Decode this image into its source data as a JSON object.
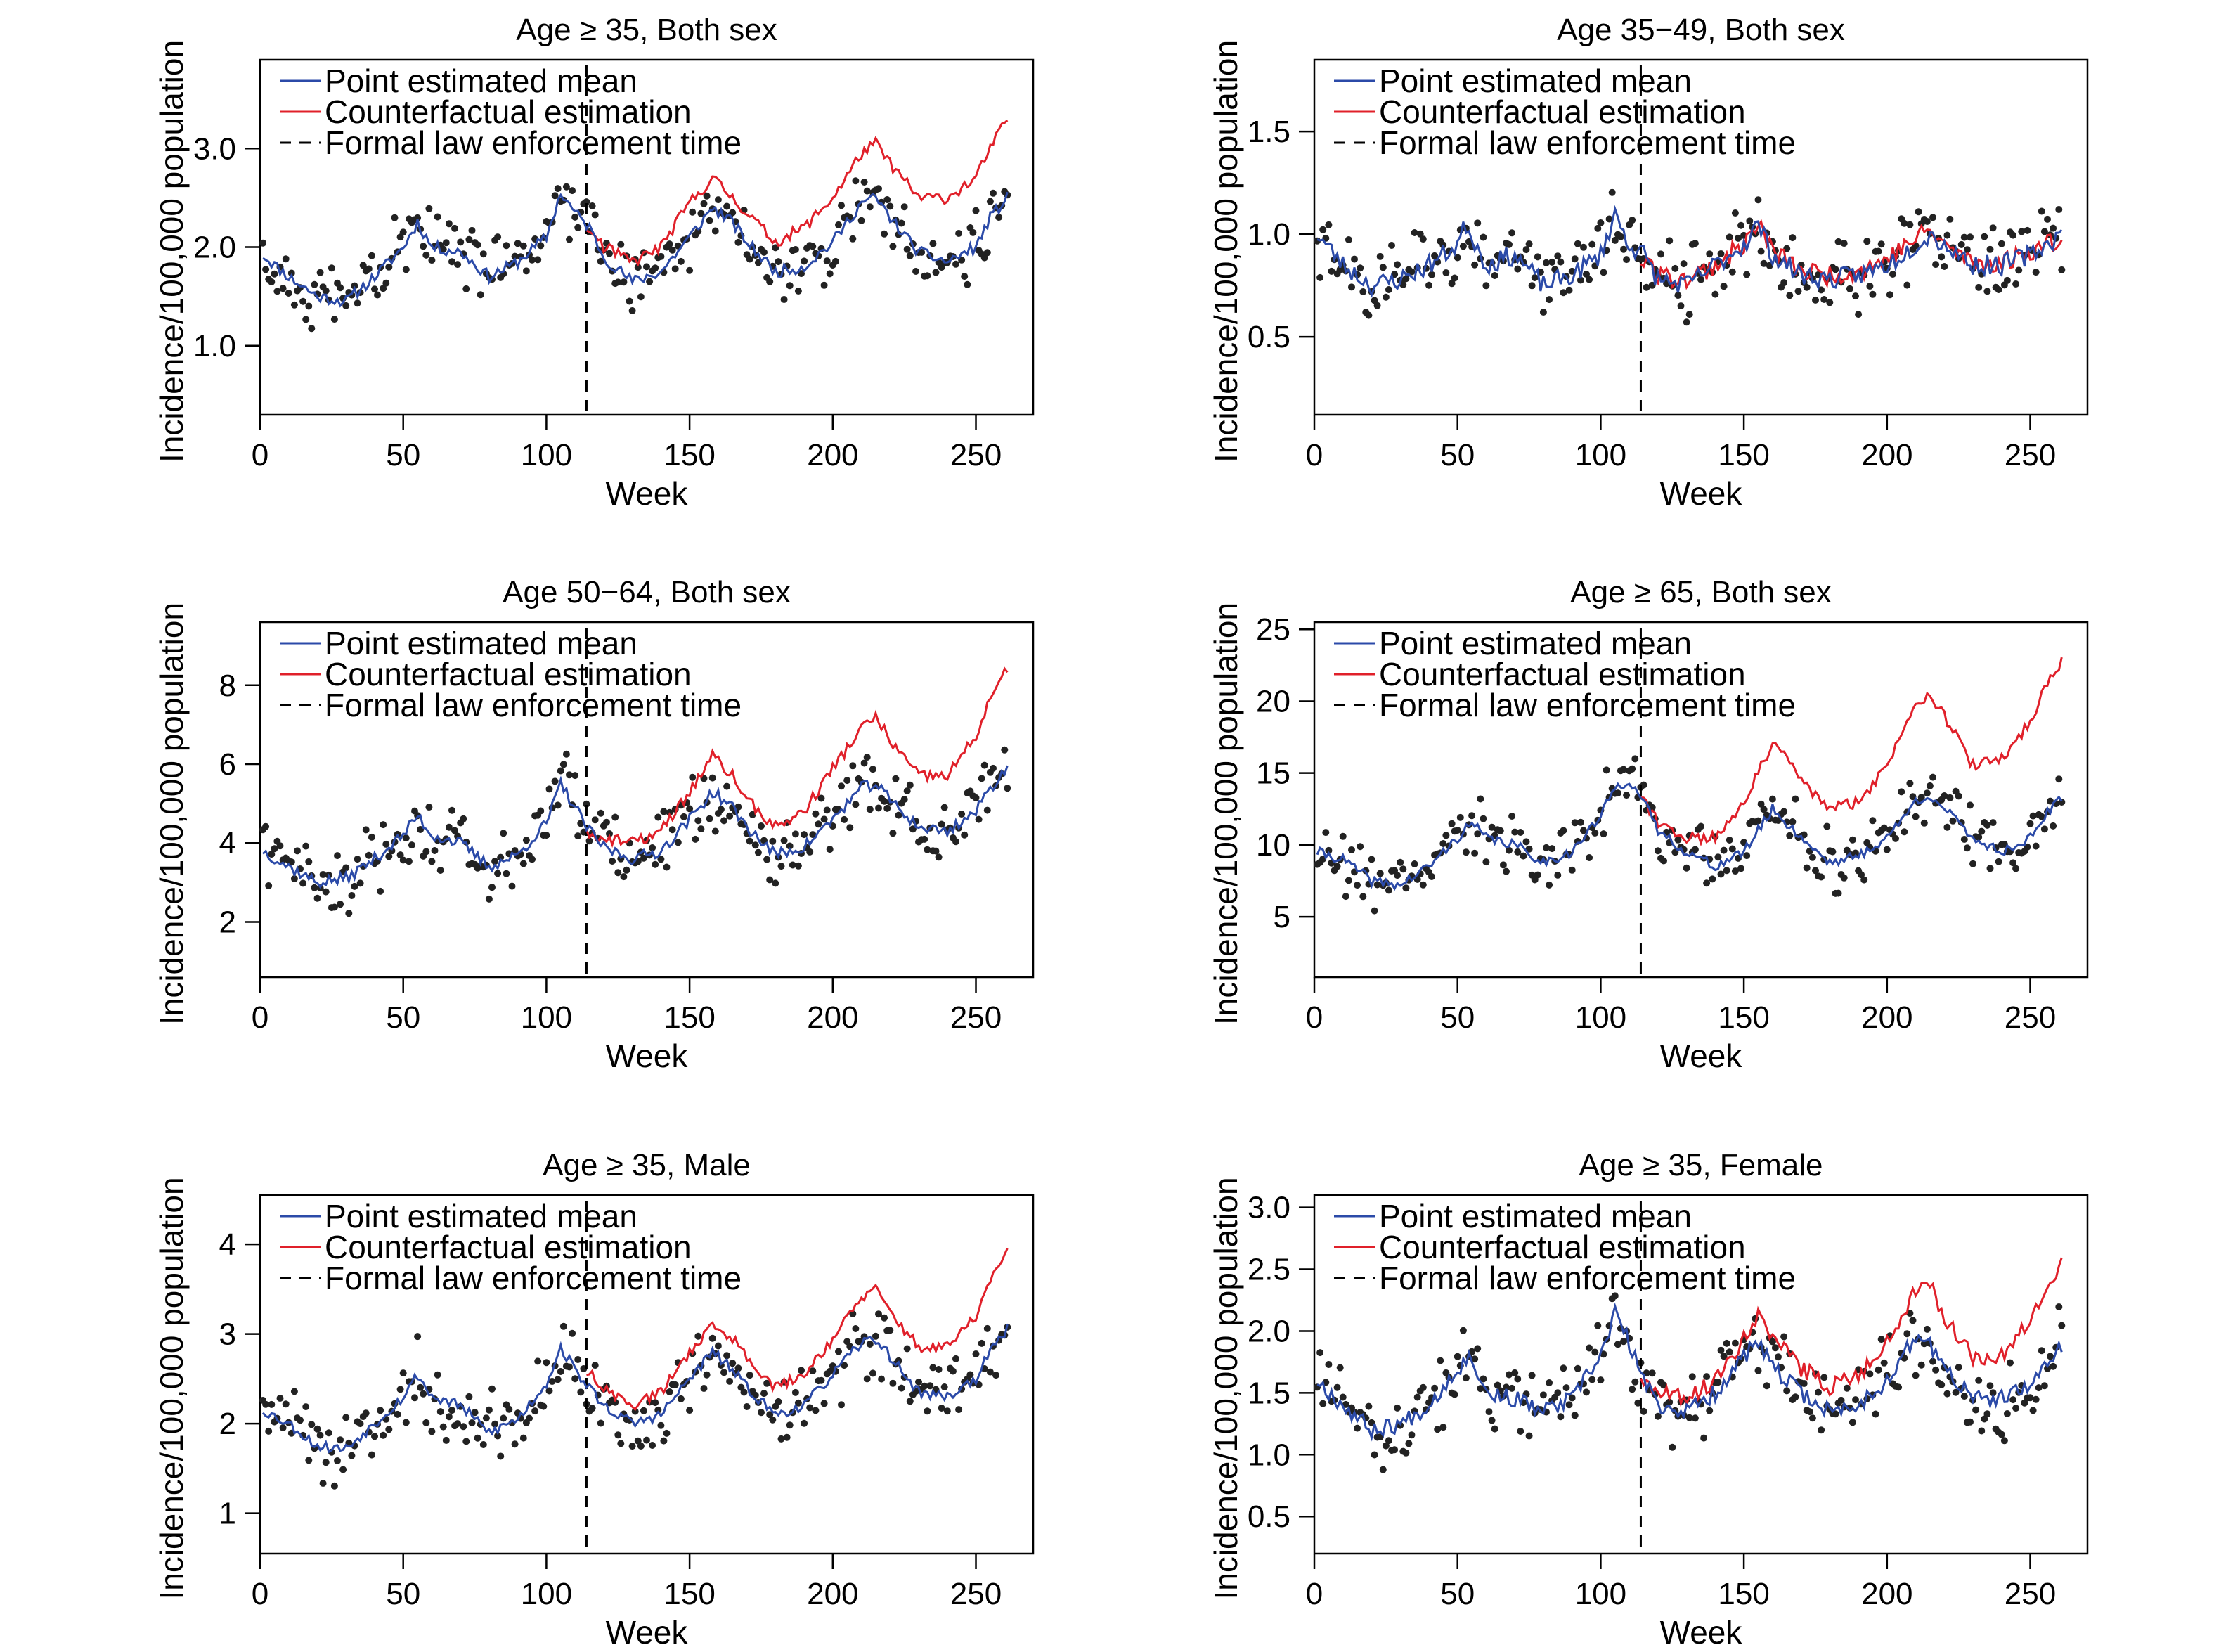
{
  "legend": {
    "mean": "Point estimated mean",
    "counterfactual": "Counterfactual estimation",
    "law": "Formal law enforcement time"
  },
  "colors": {
    "mean": "#2b4aa8",
    "counterfactual": "#e0202a",
    "points": "#222222",
    "law": "#000000"
  },
  "chart_data": [
    {
      "type": "line",
      "title": "Age ≥ 35, Both sex",
      "xlabel": "Week",
      "ylabel": "Incidence/100,000 population",
      "xlim": [
        0,
        270
      ],
      "ylim": [
        0.3,
        3.9
      ],
      "xticks": [
        0,
        50,
        100,
        150,
        200,
        250
      ],
      "yticks": [
        1.0,
        2.0,
        3.0
      ],
      "ytick_labels": [
        "1.0",
        "2.0",
        "3.0"
      ],
      "law_week": 114,
      "seed": 11,
      "base": 1.92,
      "mean_keys": [
        [
          1,
          1.92
        ],
        [
          10,
          1.7
        ],
        [
          20,
          1.5
        ],
        [
          30,
          1.45
        ],
        [
          40,
          1.7
        ],
        [
          50,
          2.0
        ],
        [
          55,
          2.25
        ],
        [
          60,
          2.0
        ],
        [
          70,
          1.95
        ],
        [
          80,
          1.7
        ],
        [
          90,
          1.85
        ],
        [
          100,
          2.1
        ],
        [
          105,
          2.55
        ],
        [
          110,
          2.35
        ],
        [
          115,
          2.2
        ],
        [
          120,
          1.9
        ],
        [
          130,
          1.65
        ],
        [
          140,
          1.75
        ],
        [
          150,
          2.1
        ],
        [
          158,
          2.4
        ],
        [
          165,
          2.25
        ],
        [
          170,
          2.05
        ],
        [
          180,
          1.75
        ],
        [
          190,
          1.8
        ],
        [
          200,
          2.05
        ],
        [
          210,
          2.45
        ],
        [
          215,
          2.5
        ],
        [
          220,
          2.3
        ],
        [
          230,
          1.95
        ],
        [
          240,
          1.85
        ],
        [
          250,
          2.0
        ],
        [
          255,
          2.3
        ],
        [
          261,
          2.5
        ]
      ],
      "cf_keys": [
        [
          114,
          2.2
        ],
        [
          120,
          2.0
        ],
        [
          130,
          1.85
        ],
        [
          140,
          2.0
        ],
        [
          150,
          2.45
        ],
        [
          158,
          2.7
        ],
        [
          165,
          2.5
        ],
        [
          170,
          2.35
        ],
        [
          180,
          2.05
        ],
        [
          190,
          2.2
        ],
        [
          200,
          2.5
        ],
        [
          210,
          2.95
        ],
        [
          215,
          3.05
        ],
        [
          220,
          2.85
        ],
        [
          230,
          2.5
        ],
        [
          240,
          2.5
        ],
        [
          250,
          2.7
        ],
        [
          255,
          3.0
        ],
        [
          261,
          3.3
        ]
      ],
      "mean_noise": 0.06,
      "cf_noise": 0.06,
      "scatter": 0.4
    },
    {
      "type": "line",
      "title": "Age 35−49, Both sex",
      "xlabel": "Week",
      "ylabel": "Incidence/100,000 population",
      "xlim": [
        0,
        270
      ],
      "ylim": [
        0.12,
        1.85
      ],
      "xticks": [
        0,
        50,
        100,
        150,
        200,
        250
      ],
      "yticks": [
        0.5,
        1.0,
        1.5
      ],
      "ytick_labels": [
        "0.5",
        "1.0",
        "1.5"
      ],
      "law_week": 114,
      "seed": 23,
      "base": 1.0,
      "mean_keys": [
        [
          1,
          1.0
        ],
        [
          10,
          0.85
        ],
        [
          20,
          0.75
        ],
        [
          30,
          0.78
        ],
        [
          40,
          0.85
        ],
        [
          50,
          0.95
        ],
        [
          53,
          1.05
        ],
        [
          60,
          0.85
        ],
        [
          70,
          0.9
        ],
        [
          80,
          0.75
        ],
        [
          90,
          0.8
        ],
        [
          100,
          0.9
        ],
        [
          105,
          1.1
        ],
        [
          110,
          0.95
        ],
        [
          115,
          0.9
        ],
        [
          120,
          0.78
        ],
        [
          130,
          0.75
        ],
        [
          140,
          0.85
        ],
        [
          150,
          0.95
        ],
        [
          155,
          1.05
        ],
        [
          160,
          0.9
        ],
        [
          170,
          0.8
        ],
        [
          180,
          0.78
        ],
        [
          190,
          0.8
        ],
        [
          200,
          0.85
        ],
        [
          210,
          0.95
        ],
        [
          215,
          1.0
        ],
        [
          220,
          0.95
        ],
        [
          230,
          0.85
        ],
        [
          240,
          0.85
        ],
        [
          250,
          0.9
        ],
        [
          261,
          1.0
        ]
      ],
      "cf_keys": [
        [
          114,
          0.9
        ],
        [
          120,
          0.8
        ],
        [
          130,
          0.78
        ],
        [
          140,
          0.85
        ],
        [
          150,
          0.95
        ],
        [
          155,
          1.05
        ],
        [
          160,
          0.92
        ],
        [
          170,
          0.82
        ],
        [
          180,
          0.8
        ],
        [
          190,
          0.82
        ],
        [
          200,
          0.88
        ],
        [
          210,
          0.98
        ],
        [
          215,
          1.02
        ],
        [
          220,
          0.95
        ],
        [
          230,
          0.86
        ],
        [
          240,
          0.86
        ],
        [
          250,
          0.92
        ],
        [
          261,
          0.98
        ]
      ],
      "mean_noise": 0.05,
      "cf_noise": 0.05,
      "scatter": 0.22
    },
    {
      "type": "line",
      "title": "Age 50−64, Both sex",
      "xlabel": "Week",
      "ylabel": "Incidence/100,000 population",
      "xlim": [
        0,
        270
      ],
      "ylim": [
        0.6,
        9.6
      ],
      "xticks": [
        0,
        50,
        100,
        150,
        200,
        250
      ],
      "yticks": [
        2,
        4,
        6,
        8
      ],
      "ytick_labels": [
        "2",
        "4",
        "6",
        "8"
      ],
      "law_week": 114,
      "seed": 37,
      "base": 3.8,
      "mean_keys": [
        [
          1,
          3.8
        ],
        [
          10,
          3.4
        ],
        [
          20,
          3.0
        ],
        [
          30,
          3.1
        ],
        [
          40,
          3.6
        ],
        [
          50,
          4.2
        ],
        [
          55,
          4.7
        ],
        [
          60,
          4.2
        ],
        [
          70,
          4.0
        ],
        [
          80,
          3.4
        ],
        [
          90,
          3.7
        ],
        [
          100,
          4.5
        ],
        [
          105,
          5.5
        ],
        [
          110,
          4.9
        ],
        [
          115,
          4.3
        ],
        [
          120,
          3.9
        ],
        [
          130,
          3.6
        ],
        [
          140,
          3.8
        ],
        [
          150,
          4.6
        ],
        [
          158,
          5.3
        ],
        [
          165,
          4.9
        ],
        [
          170,
          4.4
        ],
        [
          180,
          3.7
        ],
        [
          190,
          3.9
        ],
        [
          200,
          4.6
        ],
        [
          210,
          5.4
        ],
        [
          215,
          5.5
        ],
        [
          220,
          5.1
        ],
        [
          230,
          4.4
        ],
        [
          240,
          4.3
        ],
        [
          250,
          4.8
        ],
        [
          255,
          5.4
        ],
        [
          261,
          5.9
        ]
      ],
      "cf_keys": [
        [
          114,
          4.3
        ],
        [
          120,
          4.1
        ],
        [
          130,
          4.0
        ],
        [
          140,
          4.3
        ],
        [
          150,
          5.3
        ],
        [
          158,
          6.2
        ],
        [
          165,
          5.7
        ],
        [
          170,
          5.1
        ],
        [
          180,
          4.4
        ],
        [
          190,
          4.8
        ],
        [
          200,
          5.9
        ],
        [
          210,
          6.9
        ],
        [
          215,
          7.2
        ],
        [
          220,
          6.6
        ],
        [
          230,
          5.7
        ],
        [
          240,
          5.7
        ],
        [
          250,
          6.7
        ],
        [
          255,
          7.7
        ],
        [
          261,
          8.4
        ]
      ],
      "mean_noise": 0.15,
      "cf_noise": 0.15,
      "scatter": 1.1
    },
    {
      "type": "line",
      "title": "Age ≥ 65, Both sex",
      "xlabel": "Week",
      "ylabel": "Incidence/100,000 population",
      "xlim": [
        0,
        270
      ],
      "ylim": [
        0.8,
        25.5
      ],
      "xticks": [
        0,
        50,
        100,
        150,
        200,
        250
      ],
      "yticks": [
        5,
        10,
        15,
        20,
        25
      ],
      "ytick_labels": [
        "5",
        "10",
        "15",
        "20",
        "25"
      ],
      "law_week": 114,
      "seed": 41,
      "base": 9.5,
      "mean_keys": [
        [
          1,
          9.5
        ],
        [
          10,
          9.0
        ],
        [
          20,
          7.5
        ],
        [
          30,
          7.2
        ],
        [
          40,
          8.5
        ],
        [
          50,
          10.5
        ],
        [
          55,
          11.5
        ],
        [
          60,
          10.5
        ],
        [
          70,
          10.0
        ],
        [
          80,
          8.8
        ],
        [
          90,
          9.5
        ],
        [
          100,
          12.0
        ],
        [
          105,
          14.0
        ],
        [
          110,
          14.5
        ],
        [
          115,
          13.0
        ],
        [
          120,
          11.0
        ],
        [
          130,
          9.5
        ],
        [
          140,
          8.5
        ],
        [
          150,
          9.5
        ],
        [
          160,
          12.5
        ],
        [
          165,
          11.5
        ],
        [
          170,
          10.5
        ],
        [
          180,
          8.8
        ],
        [
          190,
          9.2
        ],
        [
          200,
          10.5
        ],
        [
          210,
          13.0
        ],
        [
          215,
          13.5
        ],
        [
          220,
          12.5
        ],
        [
          230,
          10.5
        ],
        [
          240,
          9.5
        ],
        [
          250,
          10.5
        ],
        [
          255,
          12.0
        ],
        [
          261,
          13.2
        ]
      ],
      "cf_keys": [
        [
          114,
          13.5
        ],
        [
          120,
          11.5
        ],
        [
          130,
          10.5
        ],
        [
          140,
          10.5
        ],
        [
          150,
          13.0
        ],
        [
          160,
          17.0
        ],
        [
          165,
          16.0
        ],
        [
          170,
          14.5
        ],
        [
          180,
          12.5
        ],
        [
          190,
          13.0
        ],
        [
          200,
          15.5
        ],
        [
          210,
          20.0
        ],
        [
          215,
          20.5
        ],
        [
          220,
          19.0
        ],
        [
          230,
          15.5
        ],
        [
          240,
          16.0
        ],
        [
          250,
          18.5
        ],
        [
          255,
          21.0
        ],
        [
          261,
          22.7
        ]
      ],
      "mean_noise": 0.35,
      "cf_noise": 0.4,
      "scatter": 2.6
    },
    {
      "type": "line",
      "title": "Age ≥ 35, Male",
      "xlabel": "Week",
      "ylabel": "Incidence/100,000 population",
      "xlim": [
        0,
        270
      ],
      "ylim": [
        0.55,
        4.55
      ],
      "xticks": [
        0,
        50,
        100,
        150,
        200,
        250
      ],
      "yticks": [
        1,
        2,
        3,
        4
      ],
      "ytick_labels": [
        "1",
        "2",
        "3",
        "4"
      ],
      "law_week": 114,
      "seed": 53,
      "base": 2.15,
      "mean_keys": [
        [
          1,
          2.15
        ],
        [
          10,
          2.0
        ],
        [
          20,
          1.75
        ],
        [
          30,
          1.72
        ],
        [
          40,
          2.0
        ],
        [
          50,
          2.3
        ],
        [
          55,
          2.55
        ],
        [
          60,
          2.3
        ],
        [
          70,
          2.2
        ],
        [
          80,
          1.9
        ],
        [
          90,
          2.05
        ],
        [
          100,
          2.45
        ],
        [
          105,
          2.85
        ],
        [
          110,
          2.6
        ],
        [
          115,
          2.4
        ],
        [
          120,
          2.2
        ],
        [
          130,
          2.0
        ],
        [
          140,
          2.1
        ],
        [
          150,
          2.5
        ],
        [
          158,
          2.8
        ],
        [
          165,
          2.6
        ],
        [
          170,
          2.4
        ],
        [
          180,
          2.1
        ],
        [
          190,
          2.2
        ],
        [
          200,
          2.55
        ],
        [
          210,
          2.9
        ],
        [
          215,
          2.95
        ],
        [
          220,
          2.75
        ],
        [
          230,
          2.35
        ],
        [
          240,
          2.3
        ],
        [
          250,
          2.5
        ],
        [
          255,
          2.8
        ],
        [
          261,
          3.05
        ]
      ],
      "cf_keys": [
        [
          114,
          2.6
        ],
        [
          120,
          2.4
        ],
        [
          130,
          2.2
        ],
        [
          140,
          2.35
        ],
        [
          150,
          2.8
        ],
        [
          158,
          3.1
        ],
        [
          165,
          2.95
        ],
        [
          170,
          2.75
        ],
        [
          180,
          2.4
        ],
        [
          190,
          2.55
        ],
        [
          200,
          2.95
        ],
        [
          210,
          3.4
        ],
        [
          215,
          3.5
        ],
        [
          220,
          3.25
        ],
        [
          230,
          2.85
        ],
        [
          240,
          2.85
        ],
        [
          250,
          3.2
        ],
        [
          255,
          3.6
        ],
        [
          261,
          3.9
        ]
      ],
      "mean_noise": 0.06,
      "cf_noise": 0.06,
      "scatter": 0.5
    },
    {
      "type": "line",
      "title": "Age ≥ 35, Female",
      "xlabel": "Week",
      "ylabel": "Incidence/100,000 population",
      "xlim": [
        0,
        270
      ],
      "ylim": [
        0.2,
        3.1
      ],
      "xticks": [
        0,
        50,
        100,
        150,
        200,
        250
      ],
      "yticks": [
        0.5,
        1.0,
        1.5,
        2.0,
        2.5,
        3.0
      ],
      "ytick_labels": [
        "0.5",
        "1.0",
        "1.5",
        "2.0",
        "2.5",
        "3.0"
      ],
      "law_week": 114,
      "seed": 67,
      "base": 1.6,
      "mean_keys": [
        [
          1,
          1.6
        ],
        [
          10,
          1.4
        ],
        [
          20,
          1.2
        ],
        [
          30,
          1.25
        ],
        [
          40,
          1.4
        ],
        [
          50,
          1.7
        ],
        [
          55,
          1.8
        ],
        [
          60,
          1.5
        ],
        [
          70,
          1.45
        ],
        [
          80,
          1.35
        ],
        [
          90,
          1.45
        ],
        [
          100,
          1.8
        ],
        [
          105,
          2.15
        ],
        [
          110,
          1.9
        ],
        [
          115,
          1.6
        ],
        [
          120,
          1.4
        ],
        [
          130,
          1.35
        ],
        [
          140,
          1.5
        ],
        [
          150,
          1.8
        ],
        [
          155,
          1.9
        ],
        [
          160,
          1.7
        ],
        [
          170,
          1.5
        ],
        [
          180,
          1.35
        ],
        [
          190,
          1.4
        ],
        [
          200,
          1.6
        ],
        [
          210,
          1.95
        ],
        [
          215,
          1.9
        ],
        [
          220,
          1.7
        ],
        [
          230,
          1.45
        ],
        [
          240,
          1.45
        ],
        [
          250,
          1.55
        ],
        [
          261,
          1.9
        ]
      ],
      "cf_keys": [
        [
          114,
          1.6
        ],
        [
          120,
          1.5
        ],
        [
          130,
          1.45
        ],
        [
          140,
          1.6
        ],
        [
          150,
          1.95
        ],
        [
          155,
          2.15
        ],
        [
          160,
          1.95
        ],
        [
          170,
          1.7
        ],
        [
          180,
          1.55
        ],
        [
          190,
          1.65
        ],
        [
          200,
          1.9
        ],
        [
          210,
          2.35
        ],
        [
          215,
          2.4
        ],
        [
          220,
          2.1
        ],
        [
          230,
          1.8
        ],
        [
          240,
          1.8
        ],
        [
          250,
          2.1
        ],
        [
          255,
          2.35
        ],
        [
          261,
          2.55
        ]
      ],
      "mean_noise": 0.07,
      "cf_noise": 0.07,
      "scatter": 0.38
    }
  ]
}
